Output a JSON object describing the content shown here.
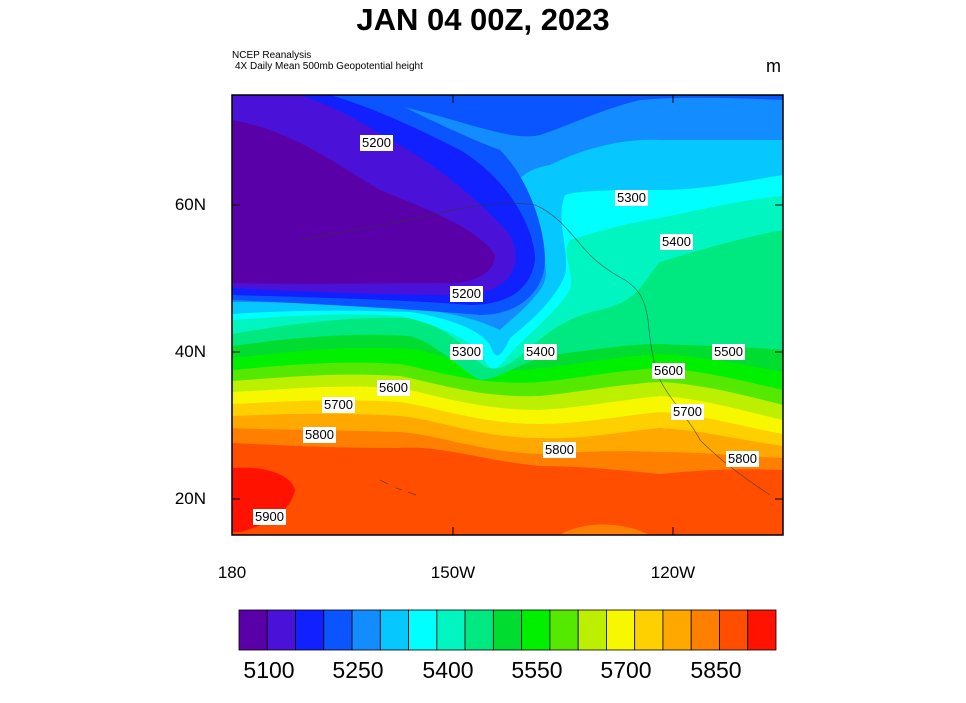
{
  "title": "JAN 04 00Z, 2023",
  "source_line1": "NCEP Reanalysis",
  "source_line2": "4X Daily Mean 500mb Geopotential height",
  "units": "m",
  "map": {
    "lat_labels": [
      "60N",
      "40N",
      "20N"
    ],
    "lon_labels": [
      "180",
      "150W",
      "120W"
    ],
    "contour_labels": [
      "5200",
      "5300",
      "5400",
      "5200",
      "5300",
      "5400",
      "5500",
      "5600",
      "5600",
      "5700",
      "5700",
      "5800",
      "5800",
      "5800",
      "5900"
    ]
  },
  "colorbar": {
    "labels": [
      "5100",
      "5250",
      "5400",
      "5550",
      "5700",
      "5850"
    ],
    "colors": [
      "#5a00a8",
      "#4a12d8",
      "#1020ff",
      "#0a55ff",
      "#128cff",
      "#06c8ff",
      "#00ffff",
      "#00f5c0",
      "#00e880",
      "#00dc30",
      "#00f000",
      "#55e800",
      "#bdf000",
      "#f7f700",
      "#ffd000",
      "#ffa800",
      "#ff8000",
      "#ff4e00",
      "#ff1200"
    ]
  },
  "chart_data": {
    "type": "heatmap",
    "title": "JAN 04 00Z, 2023",
    "subtitle": "4X Daily Mean 500mb Geopotential height",
    "units": "m",
    "x_ticks": [
      "180",
      "150W",
      "120W"
    ],
    "y_ticks": [
      "60N",
      "40N",
      "20N"
    ],
    "lon_range": [
      -180,
      -105
    ],
    "lat_range": [
      15,
      75
    ],
    "contour_interval": 50,
    "value_range": [
      5100,
      5900
    ],
    "legend": "bottom"
  }
}
